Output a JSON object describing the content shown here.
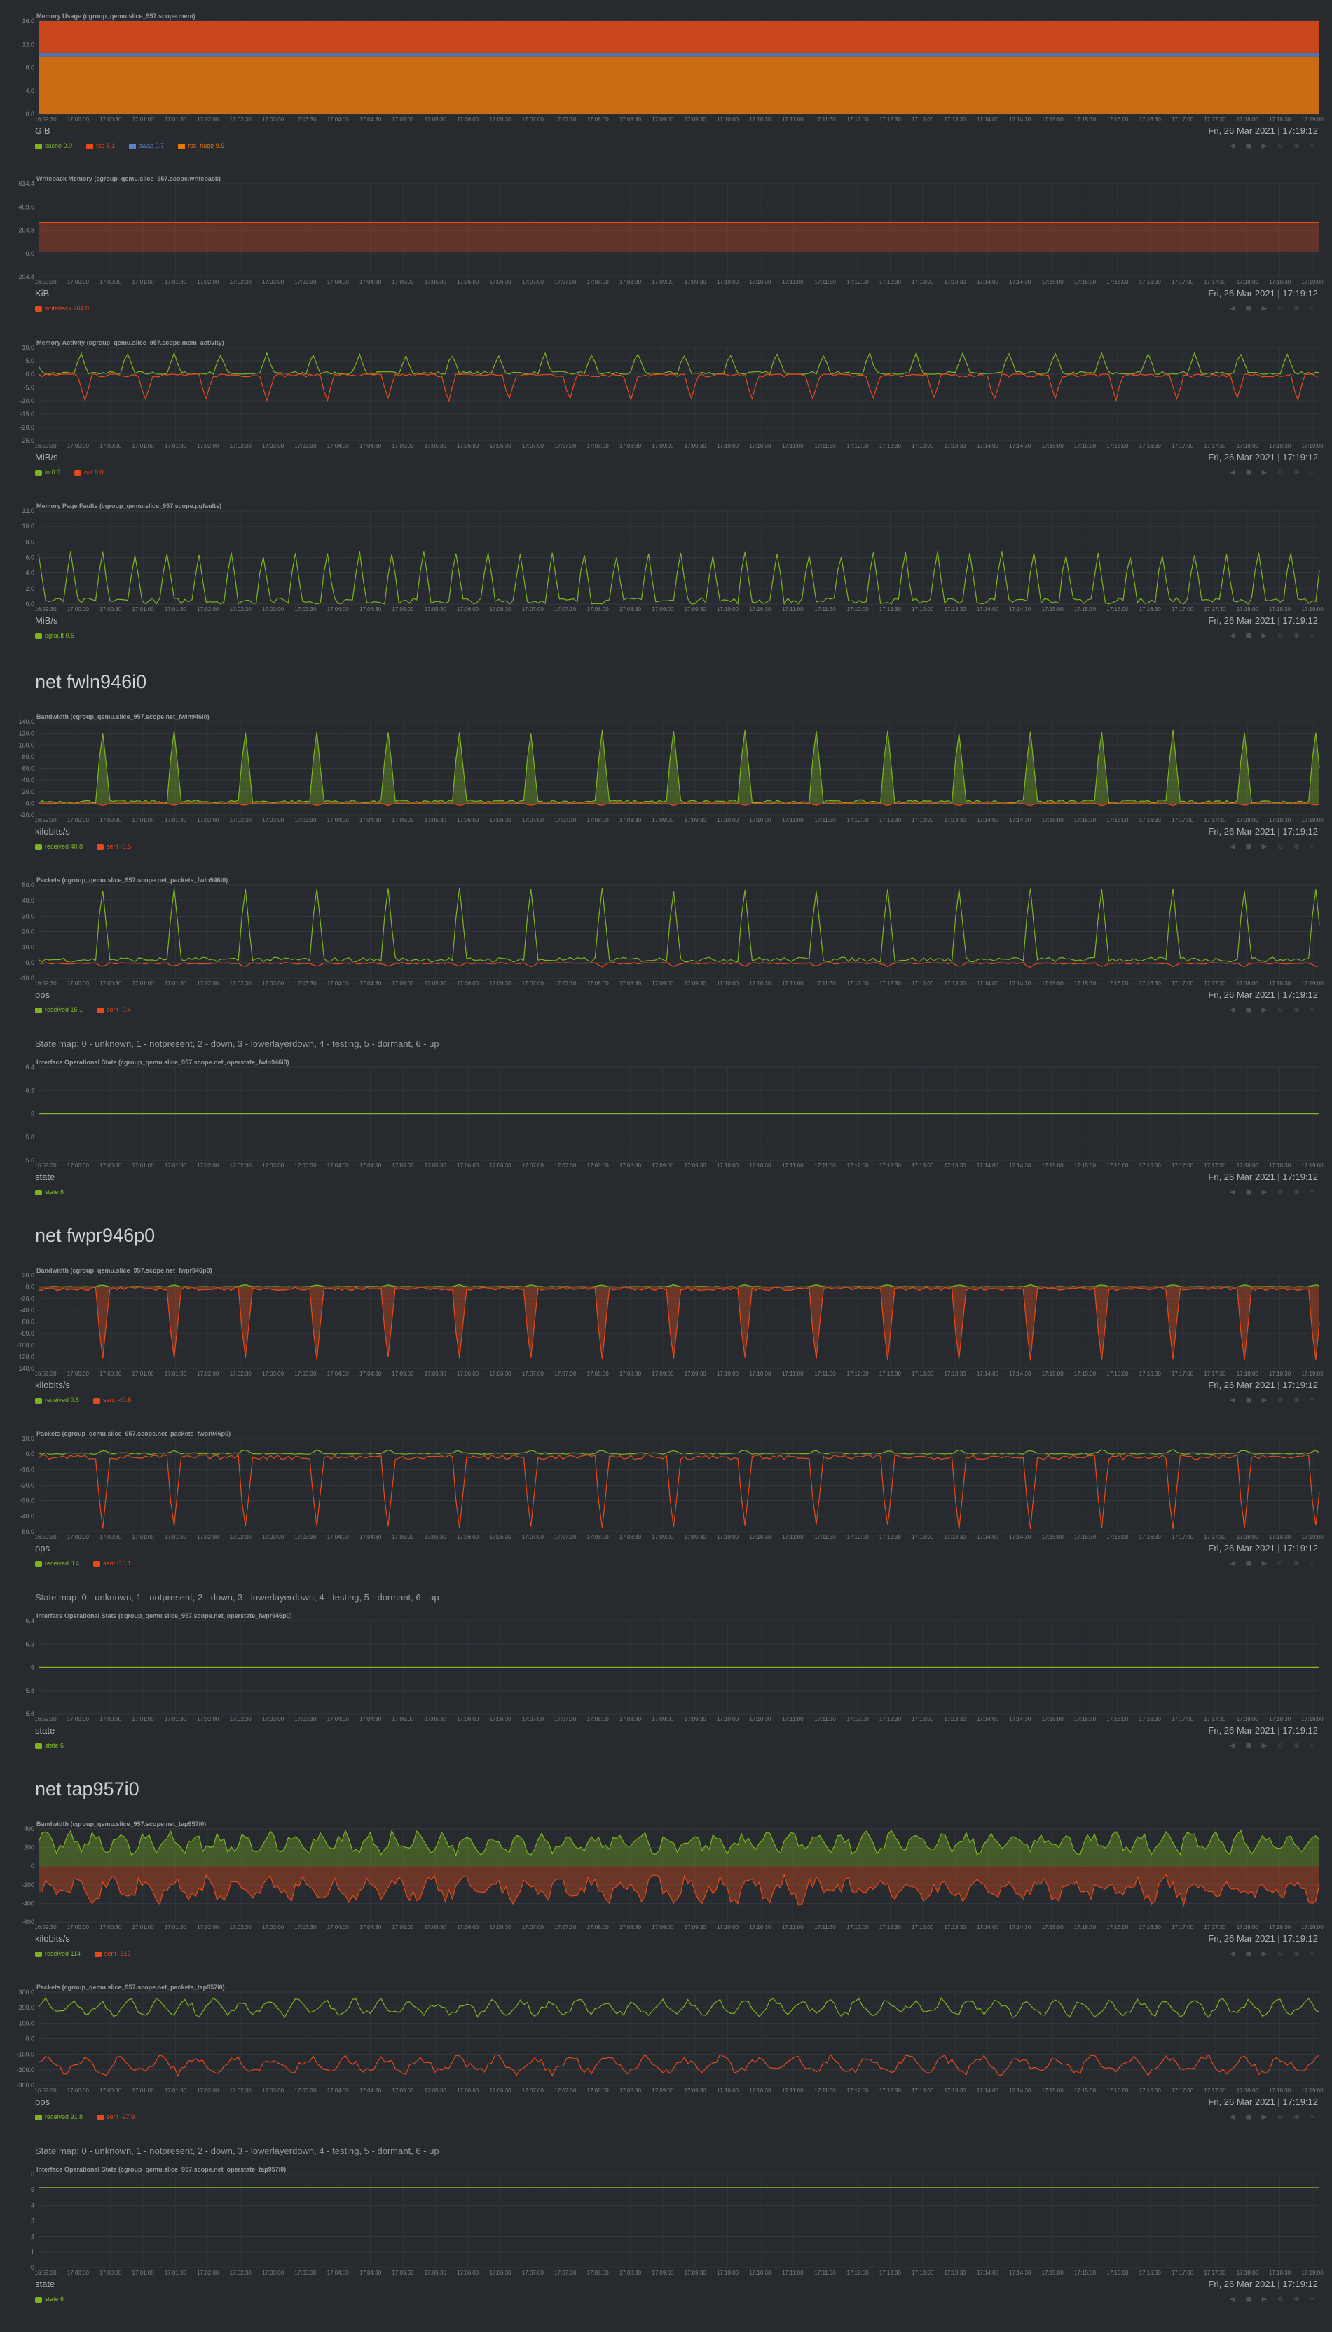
{
  "timestamp": "Fri, 26 Mar 2021 | 17:19:12",
  "toolbar": "◀ ◼ ▶ ⊖ ⊕ ⌖",
  "x_ticks": [
    "16:59:30",
    "17:00:00",
    "17:00:30",
    "17:01:00",
    "17:01:30",
    "17:02:00",
    "17:02:30",
    "17:03:00",
    "17:03:30",
    "17:04:00",
    "17:04:30",
    "17:05:00",
    "17:05:30",
    "17:06:00",
    "17:06:30",
    "17:07:00",
    "17:07:30",
    "17:08:00",
    "17:08:30",
    "17:09:00",
    "17:09:30",
    "17:10:00",
    "17:10:30",
    "17:11:00",
    "17:11:30",
    "17:12:00",
    "17:12:30",
    "17:13:00",
    "17:13:30",
    "17:14:00",
    "17:14:30",
    "17:15:00",
    "17:15:30",
    "17:16:00",
    "17:16:30",
    "17:17:00",
    "17:17:30",
    "17:18:00",
    "17:18:30",
    "17:19:00"
  ],
  "colors": {
    "green": "#7cb51e",
    "red": "#e64a19",
    "blue": "#5b83c7",
    "orange": "#e6780f"
  },
  "sections": [
    {
      "title": "",
      "note": ""
    },
    {
      "title": "net fwln946i0",
      "note": ""
    },
    {
      "title": "",
      "note": "State map: 0 - unknown, 1 - notpresent, 2 - down, 3 - lowerlayerdown, 4 - testing, 5 - dormant, 6 - up"
    },
    {
      "title": "net fwpr946p0",
      "note": ""
    },
    {
      "title": "",
      "note": "State map: 0 - unknown, 1 - notpresent, 2 - down, 3 - lowerlayerdown, 4 - testing, 5 - dormant, 6 - up"
    },
    {
      "title": "net tap957i0",
      "note": ""
    },
    {
      "title": "",
      "note": "State map: 0 - unknown, 1 - notpresent, 2 - down, 3 - lowerlayerdown, 4 - testing, 5 - dormant, 6 - up"
    }
  ],
  "chart_data": [
    {
      "type": "area",
      "title": "Memory Usage (cgroup_qemu.slice_957.scope.mem)",
      "ylabel": "GiB",
      "ylim": [
        0,
        16
      ],
      "yticks": [
        "16.0",
        "12.0",
        "8.0",
        "4.0",
        "0.0"
      ],
      "series": [
        {
          "name": "cache",
          "value": "0.0",
          "color": "#7cb51e"
        },
        {
          "name": "rss",
          "value": "8.1",
          "color": "#e64a19"
        },
        {
          "name": "swap",
          "value": "0.7",
          "color": "#5b83c7"
        },
        {
          "name": "rss_huge",
          "value": "9.9",
          "color": "#e6780f"
        }
      ]
    },
    {
      "type": "area",
      "title": "Writeback Memory (cgroup_qemu.slice_957.scope.writeback)",
      "ylabel": "KiB",
      "ylim": [
        -224,
        614
      ],
      "yticks": [
        "614.4",
        "409.6",
        "204.8",
        "0.0",
        "-204.8"
      ],
      "series": [
        {
          "name": "writeback",
          "value": "264.0",
          "color": "#e64a19"
        }
      ]
    },
    {
      "type": "line",
      "title": "Memory Activity (cgroup_qemu.slice_957.scope.mem_activity)",
      "ylabel": "MiB/s",
      "ylim": [
        -25,
        10
      ],
      "yticks": [
        "10.0",
        "5.0",
        "0.0",
        "-5.0",
        "-10.0",
        "-15.0",
        "-20.0",
        "-25.0"
      ],
      "series": [
        {
          "name": "in",
          "value": "0.0",
          "color": "#7cb51e"
        },
        {
          "name": "out",
          "value": "0.0",
          "color": "#e64a19"
        }
      ]
    },
    {
      "type": "line",
      "title": "Memory Page Faults (cgroup_qemu.slice_957.scope.pgfaults)",
      "ylabel": "MiB/s",
      "ylim": [
        0,
        12
      ],
      "yticks": [
        "12.0",
        "10.0",
        "8.0",
        "6.0",
        "4.0",
        "2.0",
        "0.0"
      ],
      "series": [
        {
          "name": "pgfault",
          "value": "0.5",
          "color": "#7cb51e"
        }
      ]
    },
    {
      "type": "area",
      "title": "Bandwidth (cgroup_qemu.slice_957.scope.net_fwln946i0)",
      "ylabel": "kilobits/s",
      "ylim": [
        -20,
        140
      ],
      "yticks": [
        "140.0",
        "120.0",
        "100.0",
        "80.0",
        "60.0",
        "40.0",
        "20.0",
        "0.0",
        "-20.0"
      ],
      "series": [
        {
          "name": "received",
          "value": "40.8",
          "color": "#7cb51e"
        },
        {
          "name": "sent",
          "value": "-0.5",
          "color": "#e64a19"
        }
      ]
    },
    {
      "type": "line",
      "title": "Packets (cgroup_qemu.slice_957.scope.net_packets_fwln946i0)",
      "ylabel": "pps",
      "ylim": [
        -10,
        50
      ],
      "yticks": [
        "50.0",
        "40.0",
        "30.0",
        "20.0",
        "10.0",
        "0.0",
        "-10.0"
      ],
      "series": [
        {
          "name": "received",
          "value": "15.1",
          "color": "#7cb51e"
        },
        {
          "name": "sent",
          "value": "-0.4",
          "color": "#e64a19"
        }
      ]
    },
    {
      "type": "line",
      "title": "Interface Operational State (cgroup_qemu.slice_957.scope.net_operstate_fwln946i0)",
      "ylabel": "state",
      "ylim": [
        5.4,
        6.6
      ],
      "yticks": [
        "6.4",
        "6.2",
        "6",
        "5.8",
        "5.6"
      ],
      "series": [
        {
          "name": "state",
          "value": "6",
          "color": "#7cb51e"
        }
      ]
    },
    {
      "type": "area",
      "title": "Bandwidth (cgroup_qemu.slice_957.scope.net_fwpr946p0)",
      "ylabel": "kilobits/s",
      "ylim": [
        -140,
        20
      ],
      "yticks": [
        "20.0",
        "0.0",
        "-20.0",
        "-40.0",
        "-60.0",
        "-80.0",
        "-100.0",
        "-120.0",
        "-140.0"
      ],
      "series": [
        {
          "name": "received",
          "value": "0.5",
          "color": "#7cb51e"
        },
        {
          "name": "sent",
          "value": "-40.8",
          "color": "#e64a19"
        }
      ]
    },
    {
      "type": "line",
      "title": "Packets (cgroup_qemu.slice_957.scope.net_packets_fwpr946p0)",
      "ylabel": "pps",
      "ylim": [
        -50,
        10
      ],
      "yticks": [
        "10.0",
        "0.0",
        "-10.0",
        "-20.0",
        "-30.0",
        "-40.0",
        "-50.0"
      ],
      "series": [
        {
          "name": "received",
          "value": "0.4",
          "color": "#7cb51e"
        },
        {
          "name": "sent",
          "value": "-15.1",
          "color": "#e64a19"
        }
      ]
    },
    {
      "type": "line",
      "title": "Interface Operational State (cgroup_qemu.slice_957.scope.net_operstate_fwpr946p0)",
      "ylabel": "state",
      "ylim": [
        5.4,
        6.6
      ],
      "yticks": [
        "6.4",
        "6.2",
        "6",
        "5.8",
        "5.6"
      ],
      "series": [
        {
          "name": "state",
          "value": "6",
          "color": "#7cb51e"
        }
      ]
    },
    {
      "type": "area",
      "title": "Bandwidth (cgroup_qemu.slice_957.scope.net_tap957i0)",
      "ylabel": "kilobits/s",
      "ylim": [
        -600,
        400
      ],
      "yticks": [
        "400",
        "200",
        "0",
        "-200",
        "-400",
        "-600"
      ],
      "series": [
        {
          "name": "received",
          "value": "114",
          "color": "#7cb51e"
        },
        {
          "name": "sent",
          "value": "-319",
          "color": "#e64a19"
        }
      ]
    },
    {
      "type": "line",
      "title": "Packets (cgroup_qemu.slice_957.scope.net_packets_tap957i0)",
      "ylabel": "pps",
      "ylim": [
        -300,
        300
      ],
      "yticks": [
        "300.0",
        "200.0",
        "100.0",
        "0.0",
        "-100.0",
        "-200.0",
        "-300.0"
      ],
      "series": [
        {
          "name": "received",
          "value": "91.8",
          "color": "#7cb51e"
        },
        {
          "name": "sent",
          "value": "-97.9",
          "color": "#e64a19"
        }
      ]
    },
    {
      "type": "line",
      "title": "Interface Operational State (cgroup_qemu.slice_957.scope.net_operstate_tap957i0)",
      "ylabel": "state",
      "ylim": [
        0,
        7
      ],
      "yticks": [
        "6",
        "5",
        "4",
        "3",
        "2",
        "1",
        "0"
      ],
      "series": [
        {
          "name": "state",
          "value": "6",
          "color": "#7cb51e"
        }
      ]
    }
  ]
}
